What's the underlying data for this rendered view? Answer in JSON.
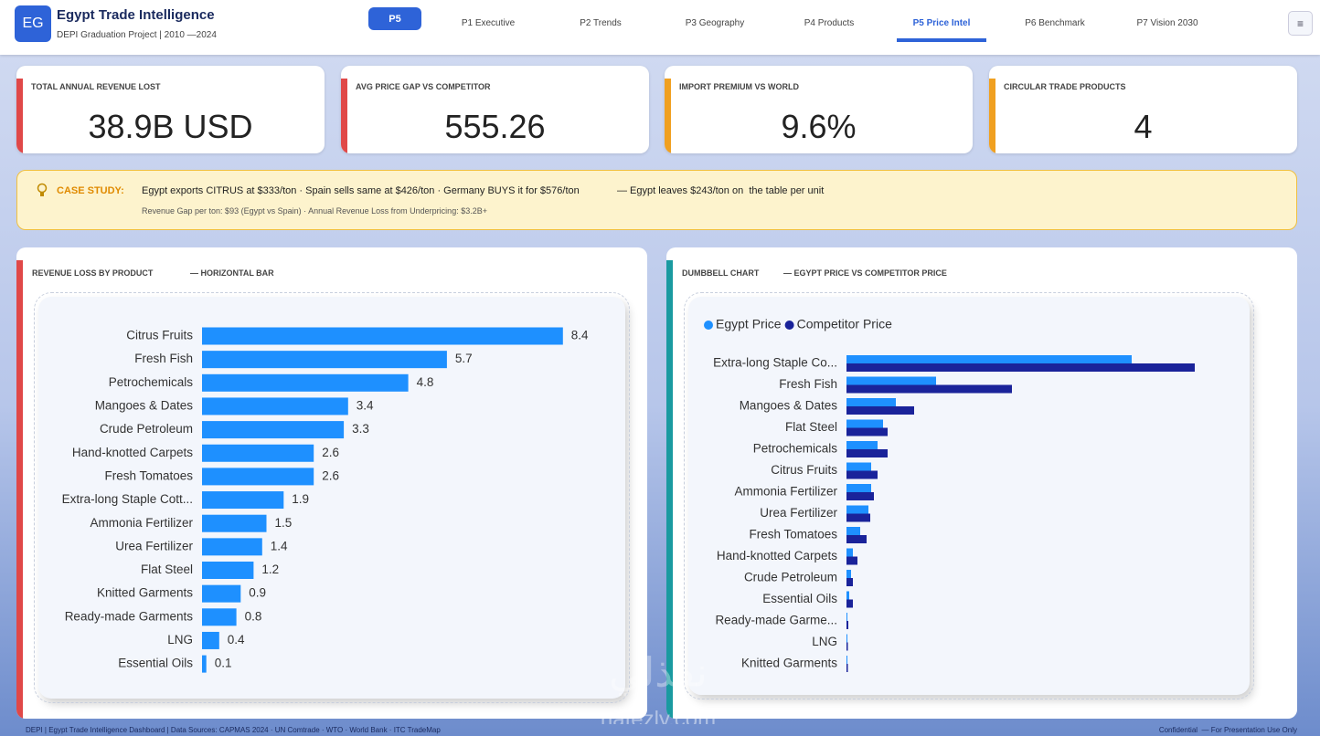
{
  "header": {
    "logo": "EG",
    "title": "Egypt Trade Intelligence",
    "subtitle": "DEPI Graduation Project | 2010  —2024",
    "badge": "P5",
    "tabs": [
      "P1 Executive",
      "P2 Trends",
      "P3 Geography",
      "P4 Products",
      "P5 Price Intel",
      "P6 Benchmark",
      "P7 Vision 2030"
    ],
    "active_tab": 4,
    "menu": "≡"
  },
  "kpis": [
    {
      "label": "TOTAL ANNUAL REVENUE LOST",
      "value": "38.9B USD",
      "color": "#e04848"
    },
    {
      "label": "AVG PRICE GAP VS COMPETITOR",
      "value": "555.26",
      "color": "#e04848"
    },
    {
      "label": "IMPORT PREMIUM VS WORLD",
      "value": "9.6%",
      "color": "#f0a020"
    },
    {
      "label": "CIRCULAR TRADE PRODUCTS",
      "value": "4",
      "color": "#f0a020"
    }
  ],
  "case_study": {
    "label": "CASE STUDY:",
    "text": "Egypt exports CITRUS at $333/ton · Spain sells same at $426/ton · Germany BUYS it for $576/ton",
    "text2": "— Egypt leaves $243/ton on  the table per unit",
    "note": "Revenue Gap per ton: $93 (Egypt vs Spain) · Annual Revenue Loss from Underpricing: $3.2B+"
  },
  "chart_data": [
    {
      "type": "hbar",
      "title": "REVENUE LOSS BY PRODUCT",
      "subtitle": "— HORIZONTAL BAR",
      "accent": "#e04848",
      "categories": [
        "Citrus Fruits",
        "Fresh Fish",
        "Petrochemicals",
        "Mangoes & Dates",
        "Crude Petroleum",
        "Hand-knotted Carpets",
        "Fresh Tomatoes",
        "Extra-long Staple Cott...",
        "Ammonia Fertilizer",
        "Urea Fertilizer",
        "Flat Steel",
        "Knitted Garments",
        "Ready-made Garments",
        "LNG",
        "Essential Oils"
      ],
      "values": [
        8.4,
        5.7,
        4.8,
        3.4,
        3.3,
        2.6,
        2.6,
        1.9,
        1.5,
        1.4,
        1.2,
        0.9,
        0.8,
        0.4,
        0.1
      ],
      "color": "#1e90ff",
      "xlim": [
        0,
        10
      ]
    },
    {
      "type": "hbar",
      "title": "DUMBBELL CHART",
      "subtitle": "— EGYPT PRICE VS COMPETITOR PRICE",
      "accent": "#1a9aa0",
      "categories": [
        "Extra-long Staple Co...",
        "Fresh Fish",
        "Mangoes & Dates",
        "Flat Steel",
        "Petrochemicals",
        "Citrus Fruits",
        "Ammonia Fertilizer",
        "Urea Fertilizer",
        "Fresh Tomatoes",
        "Hand-knotted Carpets",
        "Crude Petroleum",
        "Essential Oils",
        "Ready-made Garme...",
        "LNG",
        "Knitted Garments"
      ],
      "series": [
        {
          "name": "Egypt Price",
          "color": "#1e90ff",
          "values": [
            312,
            98,
            54,
            40,
            34,
            27,
            27,
            24,
            15,
            7,
            5,
            3,
            1,
            1,
            1
          ]
        },
        {
          "name": "Competitor Price",
          "color": "#1a239a",
          "values": [
            381,
            181,
            74,
            45,
            45,
            34,
            30,
            26,
            22,
            12,
            7,
            7,
            2,
            1.5,
            1.5
          ]
        }
      ],
      "xlim": [
        0,
        400
      ],
      "legend": "top-left"
    }
  ],
  "watermark": {
    "arabic": "نفذلي",
    "latin": "nafezly.com"
  },
  "footer": {
    "left": "DEPI | Egypt Trade Intelligence Dashboard | Data Sources: CAPMAS 2024 · UN Comtrade · WTO · World Bank · ITC TradeMap",
    "right": "Confidential  — For Presentation Use Only"
  }
}
